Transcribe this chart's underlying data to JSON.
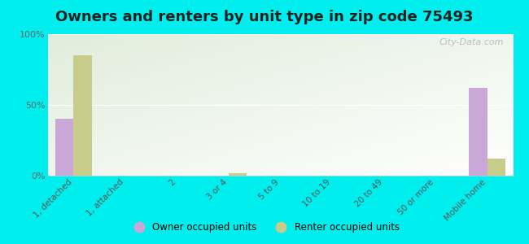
{
  "title": "Owners and renters by unit type in zip code 75493",
  "categories": [
    "1, detached",
    "1, attached",
    "2",
    "3 or 4",
    "5 to 9",
    "10 to 19",
    "20 to 49",
    "50 or more",
    "Mobile home"
  ],
  "owner_values": [
    40,
    0,
    0,
    0,
    0,
    0,
    0,
    0,
    62
  ],
  "renter_values": [
    85,
    0,
    0,
    2,
    0,
    0,
    0,
    0,
    12
  ],
  "owner_color": "#c9a8d8",
  "renter_color": "#c8cc8a",
  "background_color": "#00eeee",
  "ylim": [
    0,
    100
  ],
  "yticks": [
    0,
    50,
    100
  ],
  "ytick_labels": [
    "0%",
    "50%",
    "100%"
  ],
  "bar_width": 0.35,
  "legend_owner": "Owner occupied units",
  "legend_renter": "Renter occupied units",
  "watermark": "City-Data.com",
  "title_fontsize": 13
}
